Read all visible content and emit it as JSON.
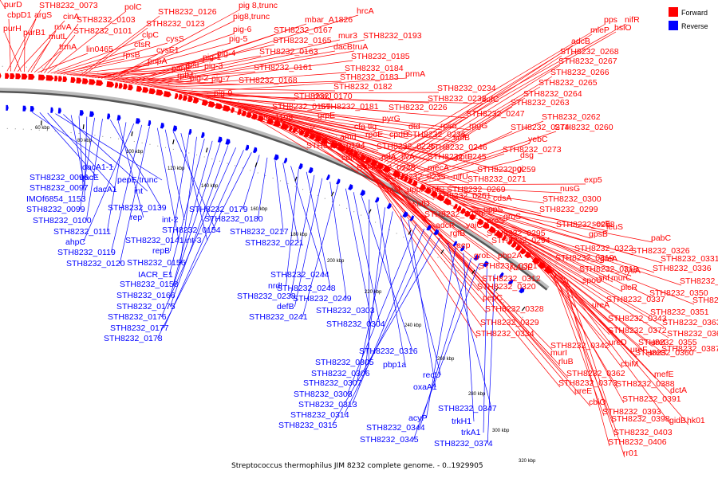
{
  "caption": "Streptococcus thermophilus JIM 8232 complete genome. - 0..1929905",
  "legend": [
    {
      "label": "Forward",
      "color": "#ff0000"
    },
    {
      "label": "Reverse",
      "color": "#0000ff"
    }
  ],
  "kbp_ticks": [
    "60 kbp",
    "80 kbp",
    "100 kbp",
    "120 kbp",
    "140 kbp",
    "160 kbp",
    "180 kbp",
    "200 kbp",
    "220 kbp",
    "240 kbp",
    "260 kbp",
    "280 kbp",
    "300 kbp",
    "320 kbp"
  ],
  "forward_genes": [
    "purD",
    "STH8232_0073",
    "cbpD1",
    "argS",
    "cinA",
    "purH",
    "purB1",
    "mutL",
    "ruvA",
    "trmA",
    "lin0465",
    "STH8232_0103",
    "STH8232_0101",
    "polC",
    "clpC",
    "ctsR",
    "rpsB",
    "cysS",
    "cysE1",
    "pnpA",
    "rpsI",
    "rplM",
    "panE",
    "STH8232_0126",
    "STH8232_0123",
    "pig-1",
    "pig-2",
    "pig-3",
    "pig-4",
    "pig-5",
    "pig-6",
    "pig-7",
    "pig-9",
    "pig 8,trunc",
    "pig8,trunc",
    "STH8232_0165",
    "STH8232_0163",
    "STH8232_0161",
    "STH8232_0168",
    "STH8232_0167",
    "mbar_A1826",
    "hrcA",
    "mur3",
    "STH8232_0193",
    "dacB",
    "truA",
    "STH8232_0185",
    "STH8232_0184",
    "STH8232_0183",
    "STH8232_0182",
    "STH8232_0170",
    "dnaJ",
    "STH8232_0169",
    "STH8232_0181",
    "tnp1198",
    "grpE",
    "dnaK",
    "prmA",
    "STH8232_0234",
    "STH8232_0233",
    "sufC",
    "STH8232_0226",
    "STH8232_0247",
    "cfa",
    "tig",
    "pyrG",
    "dtd",
    "rpso",
    "rpgG",
    "amd",
    "rpoE",
    "cpdB",
    "STH8232_0236",
    "sufB",
    "STH8232_0194",
    "STH8232_0225",
    "STH8232_0246",
    "comX",
    "relA",
    "ilvA",
    "STH8232_0245",
    "optF",
    "STH8232_0228",
    "mecA",
    "STH8232_0259",
    "pgi",
    "STH8232_0235",
    "nifU",
    "STH8232_0271",
    "msf",
    "uppP",
    "sufS",
    "STH8232_0269",
    "cdsA",
    "sufD",
    "STH8232_0261",
    "uppS",
    "STH8232_0270",
    "adcR",
    "vajC",
    "proS",
    "groS",
    "rgfB",
    "STH8232_0295",
    "eep",
    "STH8232_0294",
    "groL",
    "pbp2A",
    "STH8232_0301",
    "NADE",
    "STH8232_0312",
    "STH8232_0320",
    "pepC",
    "STH8232_0328",
    "STH8232_0329",
    "STH8232_0334",
    "STH8232_0342",
    "murI",
    "rluB",
    "STH8232_0362",
    "STH8232_0373",
    "ureE",
    "cbiO",
    "pps",
    "nifR",
    "mleP",
    "hslO",
    "adcB",
    "STH8232_0268",
    "STH8232_0267",
    "STH8232_0266",
    "STH8232_0265",
    "STH8232_0264",
    "STH8232_0263",
    "STH8232_0262",
    "STH8232_0274",
    "STH8232_0260",
    "yebC",
    "STH8232_0273",
    "dsg",
    "exp5",
    "nusG",
    "STH8232_0300",
    "STH8232_0299",
    "STH8232_0298",
    "secE",
    "leuS",
    "gpsB",
    "STH8232_0322",
    "STH8232_0319",
    "STH8232_0318",
    "STH8232_0326",
    "pabC",
    "greA",
    "STH8232_0331",
    "lysA",
    "spoU",
    "snf",
    "murC",
    "STH8232_0336",
    "STH8232_0350",
    "STH8232_0357",
    "plcR",
    "STH8232_0337",
    "STH8232_0348",
    "ureA",
    "STH8232_0343",
    "STH8232_0351",
    "STH8232_0363",
    "STH8232_0372",
    "STH8232_0361",
    "ureD",
    "STH8232_0355",
    "ureI",
    "ureF",
    "STH8232_0360",
    "ureG",
    "STH8232_0387",
    "cbiM",
    "mefE",
    "STH8232_0388",
    "dctA",
    "STH8232_0391",
    "STH8232_0393",
    "STH8232_0398",
    "gidB",
    "hk01",
    "STH8232_0403",
    "STH8232_0406",
    "rr01"
  ],
  "reverse_genes": [
    "dacA1-1",
    "qacE",
    "dacA1",
    "pepE trunc",
    "int",
    "STH8232_0096",
    "STH8232_0097",
    "IMOf6854_1153",
    "STH8232_0099",
    "STH8232_0100",
    "STH8232_0139",
    "rep",
    "STH8232_0111",
    "ahpC",
    "STH8232_0119",
    "STH8232_0120",
    "STH8232_0141",
    "int-2",
    "STH8232_0154",
    "int-3",
    "repB",
    "STH8232_0156",
    "IACR_E1",
    "STH8232_0158",
    "STH8232_0166",
    "STH8232_0175",
    "STH8232_0176",
    "STH8232_0177",
    "STH8232_0178",
    "STH8232_0179",
    "STH8232_0180",
    "STH8232_0217",
    "STH8232_0221",
    "STH8232_0244",
    "nrdI",
    "STH8232_0248",
    "STH8232_0238",
    "defB",
    "STH8232_0249",
    "STH8232_0241",
    "STH8232_0303",
    "STH8232_0304",
    "STH8232_0316",
    "STH8232_0305",
    "pbp1a",
    "STH8232_0306",
    "STH8232_0307",
    "recU",
    "oxaA1",
    "STH8232_0308",
    "STH8232_0313",
    "STH8232_0314",
    "STH8232_0315",
    "STH8232_0347",
    "acyP",
    "trkH1",
    "STH8232_0344",
    "STH8232_0345",
    "trkA1",
    "STH8232_0374"
  ]
}
